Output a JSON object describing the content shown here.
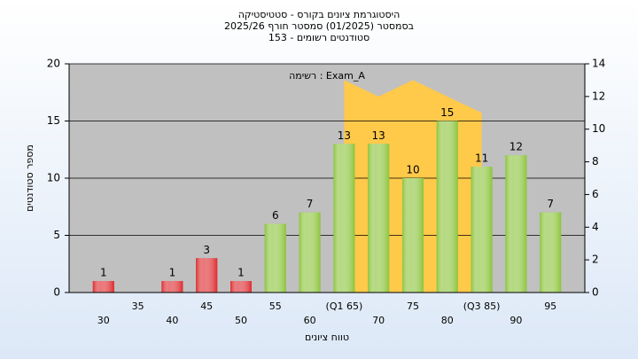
{
  "chart_data": {
    "type": "bar",
    "title_lines": [
      "היסטוגרמת ציונים בקורס - סטטיסטיקה",
      "בסמסטר (01/2025) סמסטר חורף 2025/26",
      "סטודנטים רשומים - 153"
    ],
    "legend_text": "רשימה : Exam_A",
    "ylabel": "מספר סטודנטים",
    "xlabel": "טווח ציונים",
    "categories": [
      "30",
      "35",
      "40",
      "45",
      "50",
      "55",
      "60",
      "(Q1 65)",
      "70",
      "75",
      "80",
      "(Q3 85)",
      "90",
      "95"
    ],
    "values": [
      1,
      null,
      1,
      3,
      1,
      6,
      7,
      13,
      13,
      10,
      15,
      11,
      12,
      7
    ],
    "colors": [
      "#dc2a2e",
      "#dc2a2e",
      "#dc2a2e",
      "#dc2a2e",
      "#dc2a2e",
      "#8cc43c",
      "#8cc43c",
      "#8cc43c",
      "#8cc43c",
      "#8cc43c",
      "#8cc43c",
      "#8cc43c",
      "#8cc43c",
      "#8cc43c"
    ],
    "area": {
      "axis": "y2",
      "color": "#ffc94a",
      "values": [
        null,
        null,
        null,
        null,
        null,
        null,
        null,
        13,
        12,
        13,
        12,
        11,
        null,
        null
      ]
    },
    "ylim": [
      0,
      20
    ],
    "yticks": [
      0,
      5,
      10,
      15,
      20
    ],
    "y2lim": [
      0,
      14
    ],
    "y2ticks": [
      0,
      2,
      4,
      6,
      8,
      10,
      12,
      14
    ],
    "grid": true
  }
}
